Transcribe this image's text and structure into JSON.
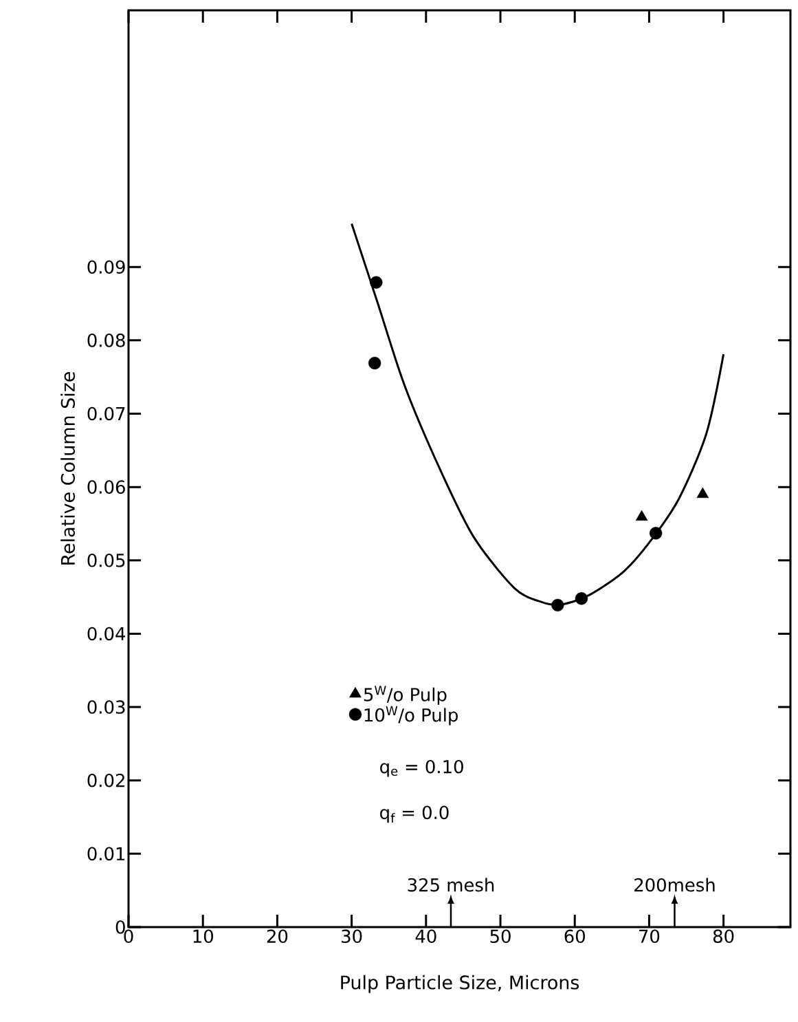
{
  "chart_data": {
    "type": "scatter",
    "xlabel": "Pulp Particle Size, Microns",
    "ylabel": "Relative Column Size",
    "xlim": [
      0,
      89
    ],
    "ylim": [
      0,
      0.125
    ],
    "xticks": [
      0,
      10,
      20,
      30,
      40,
      50,
      60,
      70,
      80
    ],
    "yticks": [
      0,
      0.01,
      0.02,
      0.03,
      0.04,
      0.05,
      0.06,
      0.07,
      0.08,
      0.09
    ],
    "legend": "bottom",
    "grid": false,
    "series": [
      {
        "type": "line",
        "color": "#000000",
        "marker": "none",
        "line_style": "solid",
        "x": [
          30.0,
          33.5,
          37.1,
          41.8,
          46.4,
          51.9,
          55.6,
          58.3,
          62.0,
          66.6,
          70.3,
          74.0,
          77.7,
          80.0
        ],
        "values": [
          0.0959,
          0.0851,
          0.0739,
          0.0626,
          0.0532,
          0.0462,
          0.0443,
          0.044,
          0.0453,
          0.0485,
          0.0528,
          0.0584,
          0.0673,
          0.0781
        ]
      },
      {
        "type": "scatter",
        "name": "5$^{W}$/o Pulp",
        "color": "#000000",
        "marker": "triangle",
        "x": [
          69.0,
          77.2
        ],
        "values": [
          0.0559,
          0.059
        ]
      },
      {
        "type": "scatter",
        "name": "10$^{W}$/o Pulp",
        "color": "#000000",
        "marker": "circle",
        "x": [
          33.3,
          33.1,
          57.7,
          60.9,
          70.9
        ],
        "values": [
          0.0879,
          0.0769,
          0.0439,
          0.0448,
          0.0537
        ]
      }
    ],
    "annotations": [
      "q$_{e}$ = 0.10",
      "q$_{f}$ = 0.0",
      "325 mesh",
      "200mesh"
    ]
  }
}
